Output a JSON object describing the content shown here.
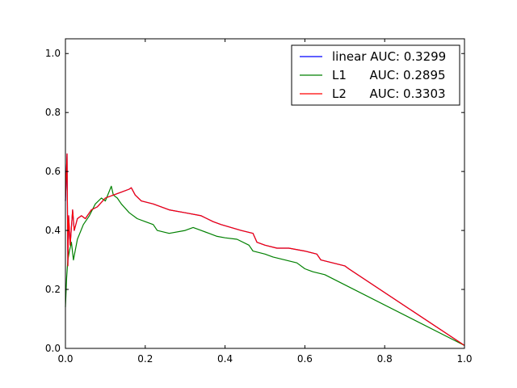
{
  "chart_data": {
    "type": "line",
    "xlim": [
      0,
      1
    ],
    "ylim": [
      0,
      1.05
    ],
    "x_ticks": [
      0.0,
      0.2,
      0.4,
      0.6,
      0.8,
      1.0
    ],
    "x_tick_labels": [
      "0.0",
      "0.2",
      "0.4",
      "0.6",
      "0.8",
      "1.0"
    ],
    "y_ticks": [
      0.0,
      0.2,
      0.4,
      0.6,
      0.8,
      1.0
    ],
    "y_tick_labels": [
      "0.0",
      "0.2",
      "0.4",
      "0.6",
      "0.8",
      "1.0"
    ],
    "grid": false,
    "legend_position": "top-right",
    "series": [
      {
        "name": "linear",
        "legend_label": "linear AUC: 0.3299",
        "color": "#0000ff",
        "x": [
          0.0,
          0.004,
          0.006,
          0.008,
          0.012,
          0.018,
          0.022,
          0.03,
          0.04,
          0.05,
          0.065,
          0.08,
          0.1,
          0.12,
          0.14,
          0.16,
          0.165,
          0.175,
          0.19,
          0.22,
          0.26,
          0.3,
          0.34,
          0.37,
          0.39,
          0.44,
          0.47,
          0.48,
          0.5,
          0.53,
          0.56,
          0.6,
          0.63,
          0.64,
          0.7,
          0.71,
          1.0
        ],
        "y": [
          0.5,
          0.66,
          0.28,
          0.45,
          0.35,
          0.47,
          0.4,
          0.44,
          0.45,
          0.44,
          0.47,
          0.48,
          0.51,
          0.52,
          0.53,
          0.54,
          0.545,
          0.52,
          0.5,
          0.49,
          0.47,
          0.46,
          0.45,
          0.43,
          0.42,
          0.4,
          0.39,
          0.36,
          0.35,
          0.34,
          0.34,
          0.33,
          0.32,
          0.3,
          0.28,
          0.27,
          0.01
        ]
      },
      {
        "name": "L1",
        "legend_label": "L1      AUC: 0.2895",
        "color": "#008000",
        "x": [
          0.0,
          0.003,
          0.006,
          0.01,
          0.015,
          0.02,
          0.03,
          0.045,
          0.06,
          0.075,
          0.09,
          0.1,
          0.115,
          0.12,
          0.13,
          0.14,
          0.16,
          0.18,
          0.2,
          0.22,
          0.23,
          0.26,
          0.3,
          0.32,
          0.34,
          0.36,
          0.38,
          0.4,
          0.43,
          0.46,
          0.47,
          0.5,
          0.52,
          0.55,
          0.58,
          0.6,
          0.62,
          0.65,
          1.0
        ],
        "y": [
          0.14,
          0.24,
          0.3,
          0.33,
          0.36,
          0.3,
          0.37,
          0.42,
          0.45,
          0.49,
          0.51,
          0.5,
          0.55,
          0.52,
          0.51,
          0.49,
          0.46,
          0.44,
          0.43,
          0.42,
          0.4,
          0.39,
          0.4,
          0.41,
          0.4,
          0.39,
          0.38,
          0.375,
          0.37,
          0.35,
          0.33,
          0.32,
          0.31,
          0.3,
          0.29,
          0.27,
          0.26,
          0.25,
          0.01
        ]
      },
      {
        "name": "L2",
        "legend_label": "L2      AUC: 0.3303",
        "color": "#ff0000",
        "x": [
          0.0,
          0.004,
          0.006,
          0.008,
          0.012,
          0.018,
          0.022,
          0.03,
          0.04,
          0.05,
          0.065,
          0.08,
          0.1,
          0.12,
          0.14,
          0.16,
          0.165,
          0.175,
          0.19,
          0.22,
          0.26,
          0.3,
          0.34,
          0.37,
          0.39,
          0.44,
          0.47,
          0.48,
          0.5,
          0.53,
          0.56,
          0.6,
          0.63,
          0.64,
          0.7,
          0.71,
          1.0
        ],
        "y": [
          0.5,
          0.66,
          0.28,
          0.45,
          0.35,
          0.47,
          0.4,
          0.44,
          0.45,
          0.44,
          0.47,
          0.48,
          0.51,
          0.52,
          0.53,
          0.54,
          0.545,
          0.52,
          0.5,
          0.49,
          0.47,
          0.46,
          0.45,
          0.43,
          0.42,
          0.4,
          0.39,
          0.36,
          0.35,
          0.34,
          0.34,
          0.33,
          0.32,
          0.3,
          0.28,
          0.27,
          0.01
        ]
      }
    ]
  }
}
